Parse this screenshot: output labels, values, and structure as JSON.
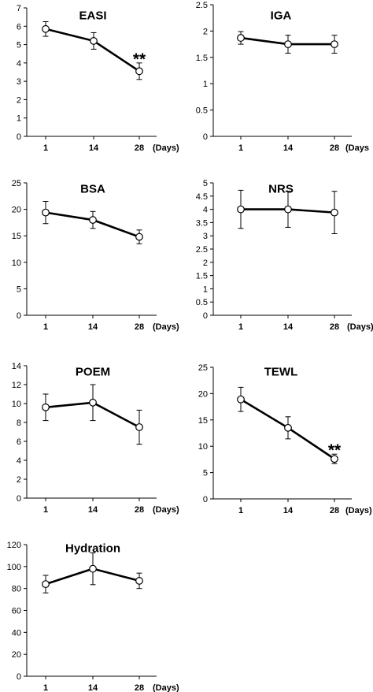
{
  "chart_data": [
    {
      "type": "line",
      "title": "EASI",
      "xunit": "(Days)",
      "categories": [
        "1",
        "14",
        "28"
      ],
      "ylim": [
        0,
        7
      ],
      "yticks": [
        0,
        1,
        2,
        3,
        4,
        5,
        6,
        7
      ],
      "values": [
        5.85,
        5.2,
        3.55
      ],
      "errors": [
        0.4,
        0.45,
        0.45
      ],
      "annotations": [
        {
          "label": "**",
          "index": 2
        }
      ]
    },
    {
      "type": "line",
      "title": "IGA",
      "xunit": "(Days",
      "categories": [
        "1",
        "14",
        "28"
      ],
      "ylim": [
        0,
        2.5
      ],
      "yticks": [
        0,
        0.5,
        1,
        1.5,
        2,
        2.5
      ],
      "values": [
        1.87,
        1.75,
        1.75
      ],
      "errors": [
        0.12,
        0.17,
        0.17
      ],
      "annotations": []
    },
    {
      "type": "line",
      "title": "BSA",
      "xunit": "(Days)",
      "categories": [
        "1",
        "14",
        "28"
      ],
      "ylim": [
        0,
        25
      ],
      "yticks": [
        0,
        5,
        10,
        15,
        20,
        25
      ],
      "values": [
        19.4,
        18.0,
        14.8
      ],
      "errors": [
        2.1,
        1.6,
        1.3
      ],
      "annotations": []
    },
    {
      "type": "line",
      "title": "NRS",
      "xunit": "(Days)",
      "categories": [
        "1",
        "14",
        "28"
      ],
      "ylim": [
        0,
        5
      ],
      "yticks": [
        0,
        0.5,
        1,
        1.5,
        2,
        2.5,
        3,
        3.5,
        4,
        4.5,
        5
      ],
      "values": [
        4.0,
        4.0,
        3.88
      ],
      "errors": [
        0.72,
        0.68,
        0.8
      ],
      "annotations": []
    },
    {
      "type": "line",
      "title": "POEM",
      "xunit": "(Days)",
      "categories": [
        "1",
        "14",
        "28"
      ],
      "ylim": [
        0,
        14
      ],
      "yticks": [
        0,
        2,
        4,
        6,
        8,
        10,
        12,
        14
      ],
      "values": [
        9.6,
        10.1,
        7.5
      ],
      "errors": [
        1.4,
        1.9,
        1.8
      ],
      "annotations": []
    },
    {
      "type": "line",
      "title": "TEWL",
      "xunit": "(Days)",
      "categories": [
        "1",
        "14",
        "28"
      ],
      "ylim": [
        0,
        25
      ],
      "yticks": [
        0,
        5,
        10,
        15,
        20,
        25
      ],
      "values": [
        18.9,
        13.5,
        7.6
      ],
      "errors": [
        2.3,
        2.1,
        0.9
      ],
      "annotations": [
        {
          "label": "**",
          "index": 2
        }
      ]
    },
    {
      "type": "line",
      "title": "Hydration",
      "xunit": "(Days)",
      "categories": [
        "1",
        "14",
        "28"
      ],
      "ylim": [
        0,
        120
      ],
      "yticks": [
        0,
        20,
        40,
        60,
        80,
        100,
        120
      ],
      "values": [
        84.0,
        98.0,
        87.0
      ],
      "errors": [
        8.0,
        14.5,
        7.0
      ],
      "annotations": []
    }
  ]
}
